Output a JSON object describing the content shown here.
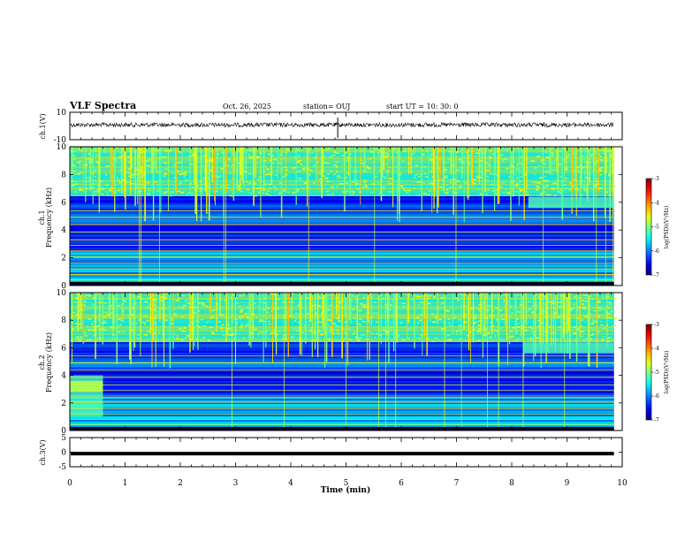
{
  "header": {
    "title": "VLF Spectra",
    "date": "Oct. 26, 2025",
    "station": "station= OUJ",
    "start": "start  UT =   10: 30: 0"
  },
  "chart_data": [
    {
      "type": "line",
      "name": "ch1-waveform",
      "ylabel": "ch.1(V)",
      "ylim": [
        -10,
        10
      ],
      "yticks": [
        "10",
        "-10"
      ],
      "xlim": [
        0,
        10
      ],
      "level": 0.8,
      "spike_at": 4.85
    },
    {
      "type": "heatmap",
      "name": "ch1-spectrogram",
      "ylabel_1": "ch.1",
      "ylabel_2": "Frequency  (kHz)",
      "ylim": [
        0,
        10
      ],
      "yticks": [
        "0",
        "2",
        "4",
        "6",
        "8",
        "10"
      ],
      "xlim": [
        0,
        10
      ],
      "colorbar": {
        "label": "log(PSD)(V²/Hz)",
        "range": [
          -7,
          -3
        ],
        "ticks": [
          "-3",
          "-4",
          "-5",
          "-6",
          "-7"
        ]
      },
      "emission_band_khz": [
        5.6,
        6.4
      ],
      "emission_start_min": 8.3
    },
    {
      "type": "heatmap",
      "name": "ch2-spectrogram",
      "ylabel_1": "ch.2",
      "ylabel_2": "Frequency  (kHz)",
      "ylim": [
        0,
        10
      ],
      "yticks": [
        "0",
        "2",
        "4",
        "6",
        "8",
        "10"
      ],
      "xlim": [
        0,
        10
      ],
      "colorbar": {
        "label": "log(PSD)(V²/Hz)",
        "range": [
          -7,
          -3
        ],
        "ticks": [
          "-3",
          "-4",
          "-5",
          "-6",
          "-7"
        ]
      },
      "emission_band_khz": [
        5.6,
        6.4
      ],
      "emission_start_min": 8.2,
      "early_band_khz": [
        1.0,
        4.0
      ],
      "early_band_end_min": 0.6
    },
    {
      "type": "line",
      "name": "ch3-trace",
      "ylabel": "ch.3(V)",
      "ylim": [
        -5,
        5
      ],
      "yticks": [
        "5",
        "0",
        "-5"
      ],
      "xlim": [
        0,
        10
      ],
      "level": -0.5
    }
  ],
  "xaxis": {
    "label": "Time  (min)",
    "ticks": [
      "0",
      "1",
      "2",
      "3",
      "4",
      "5",
      "6",
      "7",
      "8",
      "9",
      "10"
    ]
  }
}
